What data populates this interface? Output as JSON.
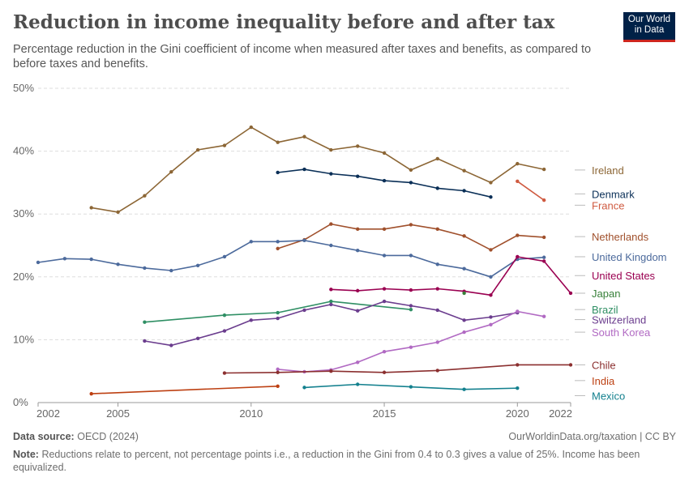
{
  "title": "Reduction in income inequality before and after tax",
  "subtitle": "Percentage reduction in the Gini coefficient of income when measured after taxes and benefits, as compared to before taxes and benefits.",
  "logo": {
    "line1": "Our World",
    "line2": "in Data"
  },
  "footer": {
    "source_label": "Data source:",
    "source_text": "OECD (2024)",
    "credit": "OurWorldinData.org/taxation | CC BY",
    "note_label": "Note:",
    "note_text": "Reductions relate to percent, not percentage points i.e., a reduction in the Gini from 0.4 to 0.3 gives a value of 25%. Income has been equivalized."
  },
  "chart_data": {
    "type": "line",
    "xlim": [
      2002,
      2022
    ],
    "ylim": [
      0,
      50
    ],
    "x_ticks": [
      2002,
      2005,
      2010,
      2015,
      2020,
      2022
    ],
    "y_ticks": [
      0,
      10,
      20,
      30,
      40,
      50
    ],
    "y_tick_labels": [
      "0%",
      "10%",
      "20%",
      "30%",
      "40%",
      "50%"
    ],
    "grid": true,
    "legend_position": "right",
    "series": [
      {
        "name": "Ireland",
        "color": "#8c6635",
        "label_value": 37.0,
        "points": [
          [
            2004,
            31.0
          ],
          [
            2005,
            30.3
          ],
          [
            2006,
            32.9
          ],
          [
            2007,
            36.7
          ],
          [
            2008,
            40.2
          ],
          [
            2009,
            40.9
          ],
          [
            2010,
            43.8
          ],
          [
            2011,
            41.4
          ],
          [
            2012,
            42.3
          ],
          [
            2013,
            40.2
          ],
          [
            2014,
            40.8
          ],
          [
            2015,
            39.7
          ],
          [
            2016,
            37.0
          ],
          [
            2017,
            38.8
          ],
          [
            2018,
            36.9
          ],
          [
            2019,
            35.0
          ],
          [
            2020,
            38.0
          ],
          [
            2021,
            37.1
          ]
        ]
      },
      {
        "name": "Denmark",
        "color": "#0a2f57",
        "label_value": 33.2,
        "points": [
          [
            2011,
            36.6
          ],
          [
            2012,
            37.1
          ],
          [
            2013,
            36.4
          ],
          [
            2014,
            36.0
          ],
          [
            2015,
            35.3
          ],
          [
            2016,
            35.0
          ],
          [
            2017,
            34.1
          ],
          [
            2018,
            33.7
          ],
          [
            2019,
            32.7
          ]
        ]
      },
      {
        "name": "France",
        "color": "#cf5a40",
        "label_value": 31.4,
        "points": [
          [
            2020,
            35.2
          ],
          [
            2021,
            32.2
          ]
        ]
      },
      {
        "name": "Netherlands",
        "color": "#a0502c",
        "label_value": 26.4,
        "points": [
          [
            2011,
            24.5
          ],
          [
            2012,
            25.9
          ],
          [
            2013,
            28.4
          ],
          [
            2014,
            27.6
          ],
          [
            2015,
            27.6
          ],
          [
            2016,
            28.3
          ],
          [
            2017,
            27.6
          ],
          [
            2018,
            26.5
          ],
          [
            2019,
            24.3
          ],
          [
            2020,
            26.6
          ],
          [
            2021,
            26.3
          ]
        ]
      },
      {
        "name": "United Kingdom",
        "color": "#4c6a9c",
        "label_value": 23.2,
        "points": [
          [
            2002,
            22.3
          ],
          [
            2003,
            22.9
          ],
          [
            2004,
            22.8
          ],
          [
            2005,
            22.0
          ],
          [
            2006,
            21.4
          ],
          [
            2007,
            21.0
          ],
          [
            2008,
            21.8
          ],
          [
            2009,
            23.2
          ],
          [
            2010,
            25.6
          ],
          [
            2011,
            25.6
          ],
          [
            2012,
            25.8
          ],
          [
            2013,
            25.0
          ],
          [
            2014,
            24.2
          ],
          [
            2015,
            23.4
          ],
          [
            2016,
            23.4
          ],
          [
            2017,
            22.0
          ],
          [
            2018,
            21.3
          ],
          [
            2019,
            20.0
          ],
          [
            2020,
            22.8
          ],
          [
            2021,
            23.1
          ]
        ]
      },
      {
        "name": "United States",
        "color": "#9a0051",
        "label_value": 20.2,
        "points": [
          [
            2013,
            18.0
          ],
          [
            2014,
            17.8
          ],
          [
            2015,
            18.1
          ],
          [
            2016,
            17.9
          ],
          [
            2017,
            18.1
          ],
          [
            2018,
            17.7
          ],
          [
            2019,
            17.1
          ],
          [
            2020,
            23.2
          ],
          [
            2021,
            22.5
          ],
          [
            2022,
            17.4
          ]
        ]
      },
      {
        "name": "Japan",
        "color": "#38803a",
        "label_value": 17.4,
        "points": [
          [
            2018,
            17.4
          ]
        ]
      },
      {
        "name": "Brazil",
        "color": "#2f8f64",
        "label_value": 14.8,
        "points": [
          [
            2006,
            12.8
          ],
          [
            2009,
            13.9
          ],
          [
            2011,
            14.3
          ],
          [
            2013,
            16.1
          ],
          [
            2016,
            14.8
          ]
        ]
      },
      {
        "name": "Switzerland",
        "color": "#6b3d8e",
        "label_value": 13.2,
        "points": [
          [
            2006,
            9.8
          ],
          [
            2007,
            9.1
          ],
          [
            2008,
            10.2
          ],
          [
            2009,
            11.4
          ],
          [
            2010,
            13.1
          ],
          [
            2011,
            13.4
          ],
          [
            2012,
            14.7
          ],
          [
            2013,
            15.6
          ],
          [
            2014,
            14.6
          ],
          [
            2015,
            16.1
          ],
          [
            2016,
            15.4
          ],
          [
            2017,
            14.7
          ],
          [
            2018,
            13.1
          ],
          [
            2019,
            13.6
          ],
          [
            2020,
            14.3
          ]
        ]
      },
      {
        "name": "South Korea",
        "color": "#b16ac3",
        "label_value": 11.2,
        "points": [
          [
            2011,
            5.3
          ],
          [
            2012,
            4.9
          ],
          [
            2013,
            5.2
          ],
          [
            2014,
            6.4
          ],
          [
            2015,
            8.1
          ],
          [
            2016,
            8.8
          ],
          [
            2017,
            9.6
          ],
          [
            2018,
            11.2
          ],
          [
            2019,
            12.4
          ],
          [
            2020,
            14.5
          ],
          [
            2021,
            13.7
          ]
        ]
      },
      {
        "name": "Chile",
        "color": "#8b2f2f",
        "label_value": 6.0,
        "points": [
          [
            2009,
            4.7
          ],
          [
            2011,
            4.8
          ],
          [
            2013,
            5.0
          ],
          [
            2015,
            4.8
          ],
          [
            2017,
            5.1
          ],
          [
            2020,
            6.0
          ],
          [
            2022,
            6.0
          ]
        ]
      },
      {
        "name": "India",
        "color": "#bd4012",
        "label_value": 3.5,
        "points": [
          [
            2004,
            1.4
          ],
          [
            2011,
            2.6
          ]
        ]
      },
      {
        "name": "Mexico",
        "color": "#13808e",
        "label_value": 1.1,
        "points": [
          [
            2012,
            2.4
          ],
          [
            2014,
            2.9
          ],
          [
            2016,
            2.5
          ],
          [
            2018,
            2.1
          ],
          [
            2020,
            2.3
          ]
        ]
      }
    ]
  }
}
